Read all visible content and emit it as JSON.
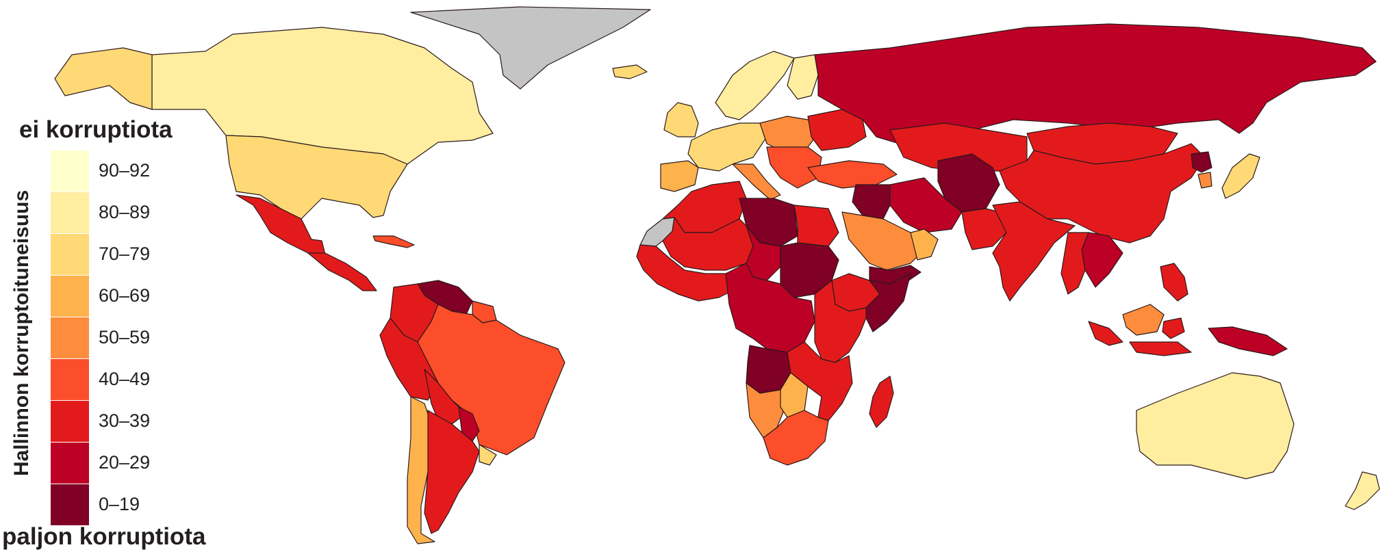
{
  "legend": {
    "top_label": "ei korruptiota",
    "bottom_label": "paljon korruptiota",
    "axis_title": "Hallinnon korruptoituneisuus",
    "classes": [
      {
        "label": "90–92",
        "color": "#ffffcc"
      },
      {
        "label": "80–89",
        "color": "#ffeda0"
      },
      {
        "label": "70–79",
        "color": "#fed976"
      },
      {
        "label": "60–69",
        "color": "#feb24c"
      },
      {
        "label": "50–59",
        "color": "#fd8d3c"
      },
      {
        "label": "40–49",
        "color": "#fc4e2a"
      },
      {
        "label": "30–39",
        "color": "#e31a1c"
      },
      {
        "label": "20–29",
        "color": "#bd0026"
      },
      {
        "label": "0–19",
        "color": "#800026"
      }
    ]
  },
  "map_colors": {
    "no_data": "#c4c4c4",
    "water": "#ffffff",
    "border": "#2a1a1a"
  },
  "regions": [
    {
      "name": "greenland",
      "class": "no-data"
    },
    {
      "name": "western-sahara",
      "class": "no-data"
    },
    {
      "name": "canada",
      "class": "80–89"
    },
    {
      "name": "alaska",
      "class": "70–79"
    },
    {
      "name": "united-states",
      "class": "70–79"
    },
    {
      "name": "mexico",
      "class": "30–39"
    },
    {
      "name": "central-america",
      "class": "30–39"
    },
    {
      "name": "cuba",
      "class": "40–49"
    },
    {
      "name": "venezuela",
      "class": "0–19"
    },
    {
      "name": "colombia",
      "class": "30–39"
    },
    {
      "name": "guyana-suriname",
      "class": "40–49"
    },
    {
      "name": "brazil",
      "class": "40–49"
    },
    {
      "name": "peru",
      "class": "30–39"
    },
    {
      "name": "bolivia",
      "class": "30–39"
    },
    {
      "name": "paraguay",
      "class": "20–29"
    },
    {
      "name": "chile",
      "class": "60–69"
    },
    {
      "name": "argentina",
      "class": "30–39"
    },
    {
      "name": "uruguay",
      "class": "70–79"
    },
    {
      "name": "iceland",
      "class": "70–79"
    },
    {
      "name": "scandinavia",
      "class": "80–89"
    },
    {
      "name": "finland",
      "class": "80–89"
    },
    {
      "name": "uk-ireland",
      "class": "70–79"
    },
    {
      "name": "western-europe",
      "class": "70–79"
    },
    {
      "name": "iberia",
      "class": "60–69"
    },
    {
      "name": "italy",
      "class": "50–59"
    },
    {
      "name": "eastern-europe",
      "class": "50–59"
    },
    {
      "name": "balkans",
      "class": "40–49"
    },
    {
      "name": "ukraine",
      "class": "30–39"
    },
    {
      "name": "russia",
      "class": "20–29"
    },
    {
      "name": "turkey",
      "class": "40–49"
    },
    {
      "name": "kazakhstan",
      "class": "30–39"
    },
    {
      "name": "central-asia",
      "class": "20–29"
    },
    {
      "name": "afghanistan",
      "class": "0–19"
    },
    {
      "name": "iran",
      "class": "20–29"
    },
    {
      "name": "iraq-syria",
      "class": "0–19"
    },
    {
      "name": "saudi-arabia",
      "class": "50–59"
    },
    {
      "name": "uae-oman",
      "class": "60–69"
    },
    {
      "name": "yemen",
      "class": "0–19"
    },
    {
      "name": "pakistan",
      "class": "30–39"
    },
    {
      "name": "india",
      "class": "30–39"
    },
    {
      "name": "mongolia",
      "class": "30–39"
    },
    {
      "name": "china",
      "class": "30–39"
    },
    {
      "name": "north-korea",
      "class": "0–19"
    },
    {
      "name": "south-korea",
      "class": "50–59"
    },
    {
      "name": "japan",
      "class": "70–79"
    },
    {
      "name": "southeast-asia",
      "class": "20–29"
    },
    {
      "name": "thailand-myanmar",
      "class": "30–39"
    },
    {
      "name": "malaysia",
      "class": "50–59"
    },
    {
      "name": "indonesia",
      "class": "30–39"
    },
    {
      "name": "philippines",
      "class": "30–39"
    },
    {
      "name": "papua-new-guinea",
      "class": "20–29"
    },
    {
      "name": "australia",
      "class": "80–89"
    },
    {
      "name": "new-zealand",
      "class": "80–89"
    },
    {
      "name": "maghreb",
      "class": "30–39"
    },
    {
      "name": "libya",
      "class": "0–19"
    },
    {
      "name": "egypt",
      "class": "30–39"
    },
    {
      "name": "west-africa",
      "class": "30–39"
    },
    {
      "name": "sahel",
      "class": "30–39"
    },
    {
      "name": "chad",
      "class": "20–29"
    },
    {
      "name": "sudan",
      "class": "0–19"
    },
    {
      "name": "ethiopia",
      "class": "30–39"
    },
    {
      "name": "somalia",
      "class": "0–19"
    },
    {
      "name": "central-africa",
      "class": "20–29"
    },
    {
      "name": "east-africa",
      "class": "30–39"
    },
    {
      "name": "angola",
      "class": "0–19"
    },
    {
      "name": "zambia-mozambique",
      "class": "30–39"
    },
    {
      "name": "namibia",
      "class": "50–59"
    },
    {
      "name": "botswana",
      "class": "60–69"
    },
    {
      "name": "south-africa",
      "class": "40–49"
    },
    {
      "name": "madagascar",
      "class": "30–39"
    }
  ]
}
